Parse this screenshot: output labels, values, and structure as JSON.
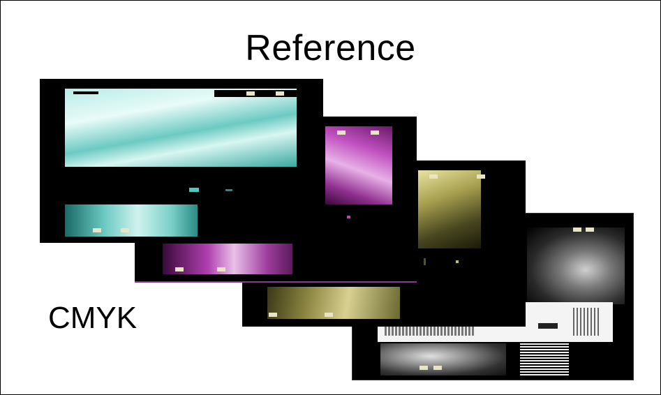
{
  "slide": {
    "title": "Reference",
    "label": "CMYK"
  },
  "separations": [
    {
      "name": "cyan",
      "color": "#3fb8b0"
    },
    {
      "name": "magenta",
      "color": "#c040c0"
    },
    {
      "name": "yellow",
      "color": "#c8c060"
    },
    {
      "name": "black",
      "color": "#9a9a9a"
    }
  ]
}
